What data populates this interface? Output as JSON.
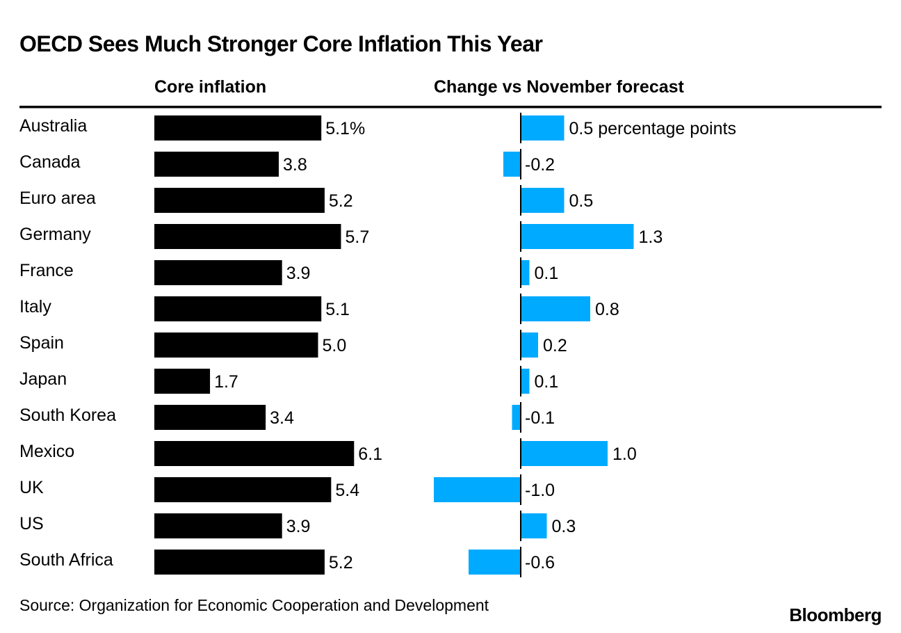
{
  "chart_data": [
    {
      "type": "bar",
      "orientation": "horizontal",
      "title": "OECD Sees Much Stronger Core Inflation This Year",
      "panel_title": "Core inflation",
      "categories": [
        "Australia",
        "Canada",
        "Euro area",
        "Germany",
        "France",
        "Italy",
        "Spain",
        "Japan",
        "South Korea",
        "Mexico",
        "UK",
        "US",
        "South Africa"
      ],
      "values": [
        5.1,
        3.8,
        5.2,
        5.7,
        3.9,
        5.1,
        5.0,
        1.7,
        3.4,
        6.1,
        5.4,
        3.9,
        5.2
      ],
      "value_labels": [
        "5.1%",
        "3.8",
        "5.2",
        "5.7",
        "3.9",
        "5.1",
        "5.0",
        "1.7",
        "3.4",
        "6.1",
        "5.4",
        "3.9",
        "5.2"
      ],
      "color": "#000000",
      "xlim": [
        0,
        6.5
      ]
    },
    {
      "type": "bar",
      "orientation": "horizontal",
      "panel_title": "Change vs November forecast",
      "categories": [
        "Australia",
        "Canada",
        "Euro area",
        "Germany",
        "France",
        "Italy",
        "Spain",
        "Japan",
        "South Korea",
        "Mexico",
        "UK",
        "US",
        "South Africa"
      ],
      "values": [
        0.5,
        -0.2,
        0.5,
        1.3,
        0.1,
        0.8,
        0.2,
        0.1,
        -0.1,
        1.0,
        -1.0,
        0.3,
        -0.6
      ],
      "value_labels": [
        "0.5 percentage points",
        "-0.2",
        "0.5",
        "1.3",
        "0.1",
        "0.8",
        "0.2",
        "0.1",
        "-0.1",
        "1.0",
        "-1.0",
        "0.3",
        "-0.6"
      ],
      "color": "#00AAFF",
      "xlim": [
        -1.0,
        1.3
      ]
    }
  ],
  "footer": {
    "source": "Source: Organization for Economic Cooperation and Development",
    "brand": "Bloomberg"
  }
}
